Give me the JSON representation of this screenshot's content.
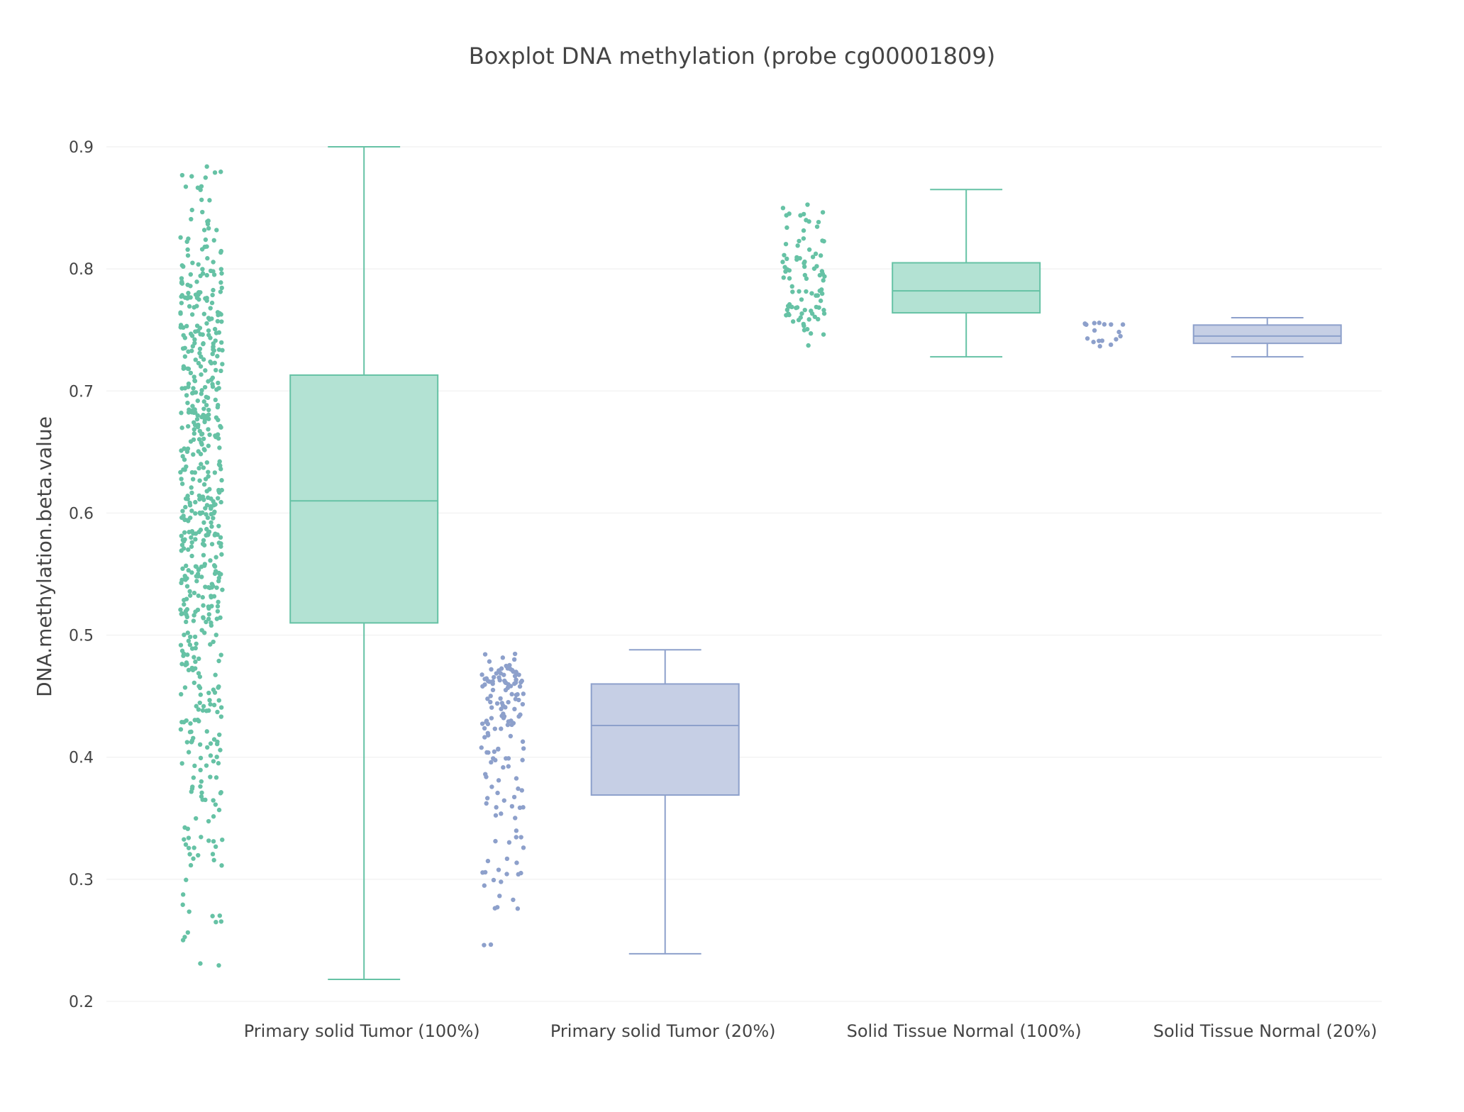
{
  "chart_data": {
    "type": "box",
    "title": "Boxplot DNA methylation (probe cg00001809)",
    "xlabel": "",
    "ylabel": "DNA.methylation.beta.value",
    "ylim": [
      0.2,
      0.9
    ],
    "yticks": [
      "0.2",
      "0.3",
      "0.4",
      "0.5",
      "0.6",
      "0.7",
      "0.8",
      "0.9"
    ],
    "grid": true,
    "legend": "none",
    "colors": {
      "green": "#66c2a5",
      "green_fill": "#b3e2d3",
      "blue": "#8da0cb",
      "blue_fill": "#c6cfe5"
    },
    "categories": [
      "Primary solid Tumor (100%)",
      "Primary solid Tumor (20%)",
      "Solid Tissue Normal (100%)",
      "Solid Tissue Normal (20%)"
    ],
    "boxes": [
      {
        "category": "Primary solid Tumor (100%)",
        "color": "green",
        "min": 0.218,
        "q1": 0.51,
        "median": 0.61,
        "q3": 0.713,
        "max": 0.9,
        "n_points": 600
      },
      {
        "category": "Primary solid Tumor (20%)",
        "color": "blue",
        "min": 0.239,
        "q1": 0.369,
        "median": 0.426,
        "q3": 0.46,
        "max": 0.488,
        "n_points": 150
      },
      {
        "category": "Solid Tissue Normal (100%)",
        "color": "green",
        "min": 0.728,
        "q1": 0.764,
        "median": 0.782,
        "q3": 0.805,
        "max": 0.865,
        "n_points": 90
      },
      {
        "category": "Solid Tissue Normal (20%)",
        "color": "blue",
        "min": 0.728,
        "q1": 0.739,
        "median": 0.745,
        "q3": 0.754,
        "max": 0.76,
        "n_points": 18
      }
    ]
  }
}
